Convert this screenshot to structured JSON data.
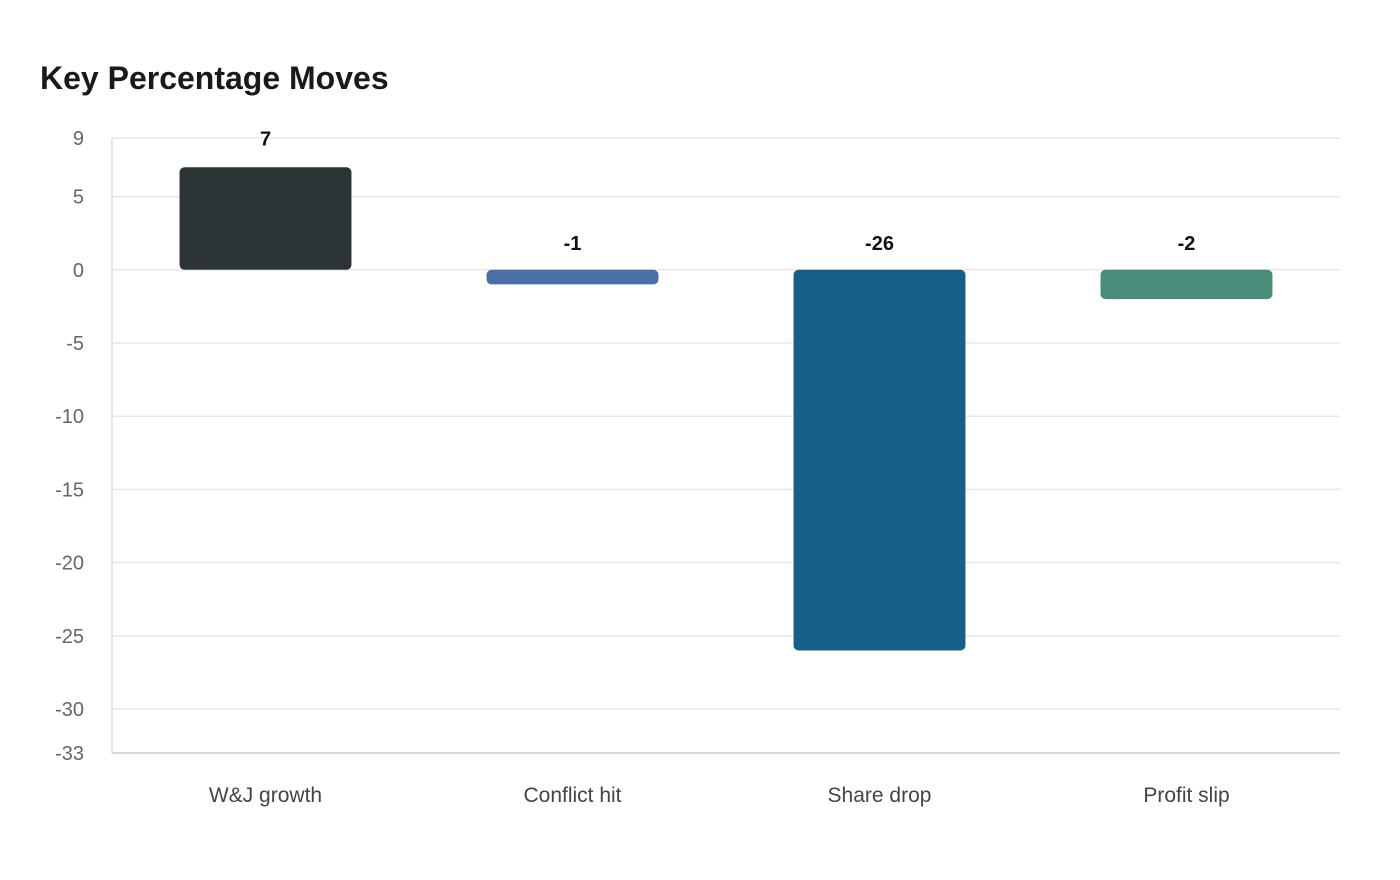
{
  "chart_data": {
    "type": "bar",
    "title": "Key Percentage Moves",
    "categories": [
      "W&J growth",
      "Conflict hit",
      "Share drop",
      "Profit slip"
    ],
    "values": [
      7,
      -1,
      -26,
      -2
    ],
    "colors": [
      "#2d3436",
      "#4a6fa5",
      "#166088",
      "#4a8c7a"
    ],
    "ylim": [
      -33,
      9
    ],
    "yticks": [
      9,
      5,
      0,
      -5,
      -10,
      -15,
      -20,
      -25,
      -30,
      -33
    ],
    "grid": true,
    "xlabel": "",
    "ylabel": ""
  }
}
